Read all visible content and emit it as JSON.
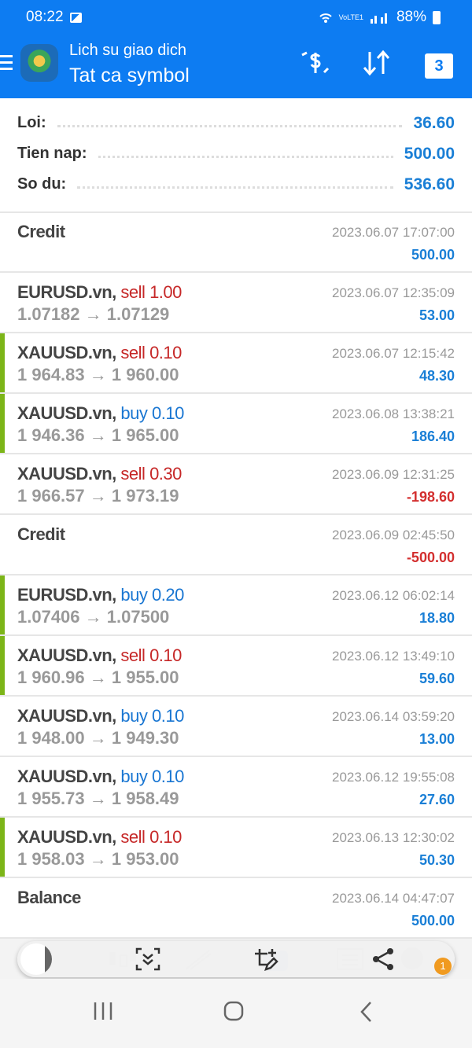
{
  "status_bar": {
    "time": "08:22",
    "network": "VoLTE1",
    "battery": "88%"
  },
  "header": {
    "subtitle": "Lich su giao dich",
    "title": "Tat ca symbol",
    "calendar_day": "3",
    "icons": [
      "menu-icon",
      "app-logo",
      "currency-exchange-icon",
      "sort-icon",
      "calendar-icon"
    ]
  },
  "summary": [
    {
      "label": "Loi:",
      "value": "36.60"
    },
    {
      "label": "Tien nap:",
      "value": "500.00"
    },
    {
      "label": "So du:",
      "value": "536.60"
    }
  ],
  "colors": {
    "accent": "#0d7cf2",
    "sell": "#c62828",
    "buy": "#1976d2",
    "profit_pos": "#1a7fd6",
    "profit_neg": "#d32f2f",
    "win_bar": "#7cb518"
  },
  "deals": [
    {
      "symbol": "Credit",
      "time": "2023.06.07 17:07:00",
      "profit": "500.00",
      "win": false
    },
    {
      "symbol": "EURUSD.vn,",
      "action": "sell",
      "volume": "1.00",
      "open": "1.07182",
      "close": "1.07129",
      "time": "2023.06.07 12:35:09",
      "profit": "53.00",
      "win": false
    },
    {
      "symbol": "XAUUSD.vn,",
      "action": "sell",
      "volume": "0.10",
      "open": "1 964.83",
      "close": "1 960.00",
      "time": "2023.06.07 12:15:42",
      "profit": "48.30",
      "win": true
    },
    {
      "symbol": "XAUUSD.vn,",
      "action": "buy",
      "volume": "0.10",
      "open": "1 946.36",
      "close": "1 965.00",
      "time": "2023.06.08 13:38:21",
      "profit": "186.40",
      "win": true
    },
    {
      "symbol": "XAUUSD.vn,",
      "action": "sell",
      "volume": "0.30",
      "open": "1 966.57",
      "close": "1 973.19",
      "time": "2023.06.09 12:31:25",
      "profit": "-198.60",
      "win": false
    },
    {
      "symbol": "Credit",
      "time": "2023.06.09 02:45:50",
      "profit": "-500.00",
      "win": false
    },
    {
      "symbol": "EURUSD.vn,",
      "action": "buy",
      "volume": "0.20",
      "open": "1.07406",
      "close": "1.07500",
      "time": "2023.06.12 06:02:14",
      "profit": "18.80",
      "win": true
    },
    {
      "symbol": "XAUUSD.vn,",
      "action": "sell",
      "volume": "0.10",
      "open": "1 960.96",
      "close": "1 955.00",
      "time": "2023.06.12 13:49:10",
      "profit": "59.60",
      "win": true
    },
    {
      "symbol": "XAUUSD.vn,",
      "action": "buy",
      "volume": "0.10",
      "open": "1 948.00",
      "close": "1 949.30",
      "time": "2023.06.14 03:59:20",
      "profit": "13.00",
      "win": false
    },
    {
      "symbol": "XAUUSD.vn,",
      "action": "buy",
      "volume": "0.10",
      "open": "1 955.73",
      "close": "1 958.49",
      "time": "2023.06.12 19:55:08",
      "profit": "27.60",
      "win": false
    },
    {
      "symbol": "XAUUSD.vn,",
      "action": "sell",
      "volume": "0.10",
      "open": "1 958.03",
      "close": "1 953.00",
      "time": "2023.06.13 12:30:02",
      "profit": "50.30",
      "win": true
    },
    {
      "symbol": "Balance",
      "time": "2023.06.14 04:47:07",
      "profit": "500.00",
      "win": false
    }
  ],
  "tab_bar": {
    "icons": [
      "quotes-icon",
      "chart-icon",
      "trade-icon",
      "history-icon",
      "news-icon",
      "chat-icon"
    ],
    "chat_badge": "1"
  },
  "screenshot_toolbar": {
    "icons": [
      "scroll-capture-icon",
      "crop-edit-icon",
      "share-icon"
    ]
  },
  "nav_bar": {
    "icons": [
      "recent-apps-icon",
      "home-icon",
      "back-icon"
    ]
  }
}
